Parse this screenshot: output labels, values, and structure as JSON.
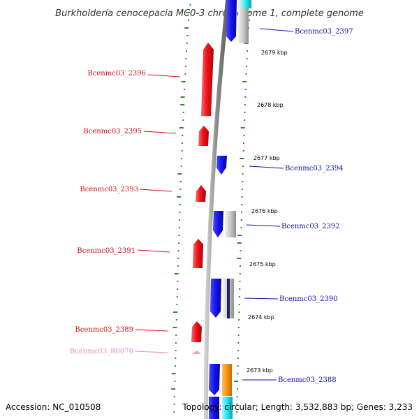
{
  "header": {
    "title": "Burkholderia cenocepacia MC0-3 chromosome 1, complete genome"
  },
  "footer": {
    "accession": "Accession: NC_010508",
    "topology": "Topology: circular; Length: 3,532,883 bp; Genes: 3,233"
  },
  "colors": {
    "backbone": "#8c8c8c",
    "forward_gene": "#e8101a",
    "reverse_gene": "#1515f0",
    "grey_feature": "#c8c8c8",
    "orange_feature": "#f7940f",
    "cyan_feature": "#24e4ee",
    "rna": "#f09ac8",
    "gc_dots": "#2a8a2a",
    "label_forward": "#cc1111",
    "label_reverse": "#1111aa",
    "label_rna": "#ee88bb"
  },
  "axis": {
    "ticks": [
      {
        "label": "2679 kbp",
        "kbp": 2679
      },
      {
        "label": "2678 kbp",
        "kbp": 2678
      },
      {
        "label": "2677 kbp",
        "kbp": 2677
      },
      {
        "label": "2676 kbp",
        "kbp": 2676
      },
      {
        "label": "2675 kbp",
        "kbp": 2675
      },
      {
        "label": "2674 kbp",
        "kbp": 2674
      },
      {
        "label": "2673 kbp",
        "kbp": 2673
      }
    ]
  },
  "genes": [
    {
      "name": "Bcenmc03_2397",
      "strand": "reverse",
      "track": "outer"
    },
    {
      "name": "Bcenmc03_2396",
      "strand": "forward"
    },
    {
      "name": "Bcenmc03_2395",
      "strand": "forward"
    },
    {
      "name": "Bcenmc03_2394",
      "strand": "reverse"
    },
    {
      "name": "Bcenmc03_2393",
      "strand": "forward"
    },
    {
      "name": "Bcenmc03_2392",
      "strand": "reverse"
    },
    {
      "name": "Bcenmc03_2391",
      "strand": "forward"
    },
    {
      "name": "Bcenmc03_2390",
      "strand": "reverse"
    },
    {
      "name": "Bcenmc03_2389",
      "strand": "forward"
    },
    {
      "name": "Bcenmc03_R0070",
      "strand": "forward",
      "type": "rna"
    },
    {
      "name": "Bcenmc03_2388",
      "strand": "reverse"
    }
  ]
}
